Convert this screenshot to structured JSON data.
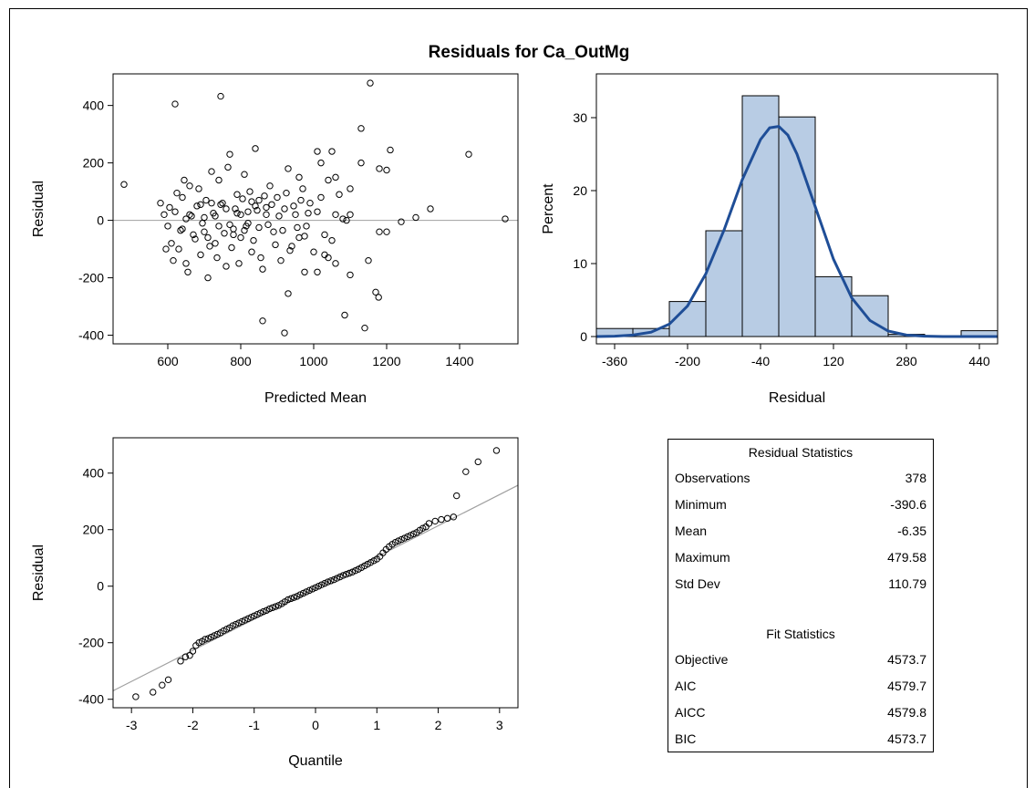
{
  "title": "Residuals for Ca_OutMg",
  "colors": {
    "bar_fill": "#b8cce4",
    "density_line": "#1f4e97",
    "ref_line": "#a0a0a0",
    "axis": "#000000"
  },
  "chart_data": [
    {
      "type": "scatter",
      "xlabel": "Predicted Mean",
      "ylabel": "Residual",
      "xticks": [
        600,
        800,
        1000,
        1200,
        1400
      ],
      "yticks": [
        -400,
        -200,
        0,
        200,
        400
      ],
      "xlim": [
        450,
        1560
      ],
      "ylim": [
        -430,
        510
      ],
      "reference_line": {
        "y": 0
      },
      "points": [
        [
          480,
          125
        ],
        [
          620,
          405
        ],
        [
          745,
          432
        ],
        [
          1155,
          478
        ],
        [
          1130,
          320
        ],
        [
          1425,
          230
        ],
        [
          1525,
          5
        ],
        [
          860,
          -350
        ],
        [
          920,
          -392
        ],
        [
          1085,
          -330
        ],
        [
          1140,
          -375
        ],
        [
          1170,
          -250
        ],
        [
          1178,
          -268
        ],
        [
          930,
          -255
        ],
        [
          975,
          -180
        ],
        [
          1010,
          -180
        ],
        [
          1060,
          -150
        ],
        [
          1100,
          -190
        ],
        [
          1030,
          -120
        ],
        [
          1040,
          -130
        ],
        [
          1150,
          -140
        ],
        [
          1180,
          -40
        ],
        [
          1200,
          -40
        ],
        [
          1180,
          180
        ],
        [
          1210,
          245
        ],
        [
          1200,
          175
        ],
        [
          1280,
          10
        ],
        [
          1320,
          40
        ],
        [
          1240,
          -5
        ],
        [
          960,
          150
        ],
        [
          1010,
          240
        ],
        [
          1020,
          200
        ],
        [
          1060,
          150
        ],
        [
          1050,
          240
        ],
        [
          1100,
          110
        ],
        [
          1130,
          200
        ],
        [
          1080,
          5
        ],
        [
          1090,
          0
        ],
        [
          1100,
          20
        ],
        [
          580,
          60
        ],
        [
          590,
          20
        ],
        [
          600,
          -20
        ],
        [
          610,
          -80
        ],
        [
          620,
          30
        ],
        [
          630,
          -100
        ],
        [
          640,
          80
        ],
        [
          650,
          -150
        ],
        [
          660,
          120
        ],
        [
          670,
          -50
        ],
        [
          680,
          50
        ],
        [
          690,
          -120
        ],
        [
          700,
          10
        ],
        [
          710,
          -200
        ],
        [
          720,
          170
        ],
        [
          730,
          -80
        ],
        [
          740,
          140
        ],
        [
          750,
          60
        ],
        [
          760,
          -160
        ],
        [
          770,
          230
        ],
        [
          780,
          -30
        ],
        [
          790,
          90
        ],
        [
          800,
          -60
        ],
        [
          810,
          160
        ],
        [
          820,
          30
        ],
        [
          830,
          -110
        ],
        [
          840,
          250
        ],
        [
          850,
          70
        ],
        [
          860,
          -170
        ],
        [
          870,
          20
        ],
        [
          880,
          120
        ],
        [
          890,
          -40
        ],
        [
          900,
          80
        ],
        [
          910,
          -140
        ],
        [
          920,
          40
        ],
        [
          930,
          180
        ],
        [
          940,
          -90
        ],
        [
          950,
          20
        ],
        [
          960,
          -60
        ],
        [
          970,
          110
        ],
        [
          980,
          -20
        ],
        [
          990,
          60
        ],
        [
          1000,
          -110
        ],
        [
          1010,
          30
        ],
        [
          1020,
          80
        ],
        [
          1030,
          -50
        ],
        [
          1040,
          140
        ],
        [
          1050,
          -70
        ],
        [
          1060,
          20
        ],
        [
          1070,
          90
        ],
        [
          595,
          -100
        ],
        [
          605,
          45
        ],
        [
          615,
          -140
        ],
        [
          625,
          95
        ],
        [
          635,
          -35
        ],
        [
          645,
          140
        ],
        [
          655,
          -180
        ],
        [
          665,
          15
        ],
        [
          675,
          -65
        ],
        [
          685,
          110
        ],
        [
          695,
          -10
        ],
        [
          705,
          70
        ],
        [
          715,
          -90
        ],
        [
          725,
          25
        ],
        [
          735,
          -130
        ],
        [
          745,
          55
        ],
        [
          755,
          -45
        ],
        [
          765,
          185
        ],
        [
          775,
          -95
        ],
        [
          785,
          40
        ],
        [
          795,
          -150
        ],
        [
          805,
          75
        ],
        [
          815,
          -20
        ],
        [
          825,
          100
        ],
        [
          835,
          -70
        ],
        [
          845,
          35
        ],
        [
          855,
          -130
        ],
        [
          865,
          85
        ],
        [
          875,
          -15
        ],
        [
          885,
          55
        ],
        [
          895,
          -85
        ],
        [
          905,
          15
        ],
        [
          915,
          -35
        ],
        [
          925,
          95
        ],
        [
          935,
          -105
        ],
        [
          945,
          50
        ],
        [
          955,
          -25
        ],
        [
          965,
          70
        ],
        [
          975,
          -55
        ],
        [
          985,
          25
        ],
        [
          640,
          -30
        ],
        [
          660,
          20
        ],
        [
          700,
          -40
        ],
        [
          720,
          60
        ],
        [
          740,
          -20
        ],
        [
          760,
          40
        ],
        [
          780,
          -50
        ],
        [
          800,
          20
        ],
        [
          820,
          -10
        ],
        [
          840,
          50
        ],
        [
          650,
          5
        ],
        [
          690,
          55
        ],
        [
          710,
          -60
        ],
        [
          730,
          15
        ],
        [
          770,
          -15
        ],
        [
          790,
          25
        ],
        [
          810,
          -35
        ],
        [
          830,
          65
        ],
        [
          850,
          -25
        ],
        [
          870,
          45
        ]
      ]
    },
    {
      "type": "bar",
      "xlabel": "Residual",
      "ylabel": "Percent",
      "xticks": [
        -360,
        -200,
        -40,
        120,
        280,
        440
      ],
      "yticks": [
        0,
        10,
        20,
        30
      ],
      "xlim": [
        -400,
        480
      ],
      "ylim": [
        -1,
        36
      ],
      "bin_width": 80,
      "bins": [
        -360,
        -280,
        -200,
        -120,
        -40,
        40,
        120,
        200,
        280,
        360,
        440
      ],
      "values": [
        1.1,
        1.1,
        4.8,
        14.5,
        33.0,
        30.1,
        8.2,
        5.6,
        0.3,
        0.0,
        0.8
      ],
      "density": {
        "x": [
          -400,
          -360,
          -320,
          -280,
          -240,
          -200,
          -160,
          -120,
          -80,
          -40,
          -20,
          0,
          20,
          40,
          80,
          120,
          160,
          200,
          240,
          280,
          320,
          360,
          400,
          440,
          480
        ],
        "y": [
          0.0,
          0.05,
          0.2,
          0.6,
          1.7,
          4.2,
          8.6,
          14.6,
          21.5,
          27.0,
          28.6,
          28.8,
          27.6,
          25.0,
          17.8,
          10.6,
          5.3,
          2.2,
          0.75,
          0.2,
          0.05,
          0.0,
          0.0,
          0.0,
          0.0
        ]
      }
    },
    {
      "type": "scatter",
      "xlabel": "Quantile",
      "ylabel": "Residual",
      "xticks": [
        -3,
        -2,
        -1,
        0,
        1,
        2,
        3
      ],
      "yticks": [
        -400,
        -200,
        0,
        200,
        400
      ],
      "xlim": [
        -3.3,
        3.3
      ],
      "ylim": [
        -430,
        525
      ],
      "reference_line": {
        "x": [
          -3.3,
          3.3
        ],
        "y": [
          -370,
          357
        ]
      },
      "points": [
        [
          -2.93,
          -391
        ],
        [
          -2.65,
          -375
        ],
        [
          -2.5,
          -350
        ],
        [
          -2.4,
          -331
        ],
        [
          -2.2,
          -265
        ],
        [
          -2.12,
          -250
        ],
        [
          -2.05,
          -245
        ],
        [
          -2.0,
          -230
        ],
        [
          -1.95,
          -210
        ],
        [
          -1.9,
          -200
        ],
        [
          -1.85,
          -195
        ],
        [
          -1.8,
          -188
        ],
        [
          -1.75,
          -185
        ],
        [
          -1.7,
          -180
        ],
        [
          -1.65,
          -175
        ],
        [
          -1.6,
          -170
        ],
        [
          -1.55,
          -165
        ],
        [
          -1.5,
          -158
        ],
        [
          -1.45,
          -152
        ],
        [
          -1.4,
          -147
        ],
        [
          -1.35,
          -140
        ],
        [
          -1.3,
          -135
        ],
        [
          -1.25,
          -130
        ],
        [
          -1.2,
          -125
        ],
        [
          -1.15,
          -120
        ],
        [
          -1.1,
          -115
        ],
        [
          -1.05,
          -110
        ],
        [
          -1.0,
          -105
        ],
        [
          -0.95,
          -100
        ],
        [
          -0.9,
          -95
        ],
        [
          -0.85,
          -90
        ],
        [
          -0.8,
          -86
        ],
        [
          -0.75,
          -80
        ],
        [
          -0.7,
          -76
        ],
        [
          -0.65,
          -72
        ],
        [
          -0.6,
          -68
        ],
        [
          -0.55,
          -62
        ],
        [
          -0.5,
          -55
        ],
        [
          -0.45,
          -48
        ],
        [
          -0.4,
          -44
        ],
        [
          -0.35,
          -40
        ],
        [
          -0.3,
          -36
        ],
        [
          -0.25,
          -30
        ],
        [
          -0.2,
          -25
        ],
        [
          -0.15,
          -20
        ],
        [
          -0.1,
          -15
        ],
        [
          -0.05,
          -10
        ],
        [
          0.0,
          -5
        ],
        [
          0.05,
          0
        ],
        [
          0.1,
          5
        ],
        [
          0.15,
          10
        ],
        [
          0.2,
          15
        ],
        [
          0.25,
          19
        ],
        [
          0.3,
          23
        ],
        [
          0.35,
          28
        ],
        [
          0.4,
          33
        ],
        [
          0.45,
          38
        ],
        [
          0.5,
          42
        ],
        [
          0.55,
          46
        ],
        [
          0.6,
          50
        ],
        [
          0.65,
          55
        ],
        [
          0.7,
          60
        ],
        [
          0.75,
          66
        ],
        [
          0.8,
          72
        ],
        [
          0.85,
          78
        ],
        [
          0.9,
          84
        ],
        [
          0.95,
          90
        ],
        [
          1.0,
          96
        ],
        [
          1.05,
          105
        ],
        [
          1.1,
          118
        ],
        [
          1.15,
          130
        ],
        [
          1.2,
          140
        ],
        [
          1.25,
          148
        ],
        [
          1.3,
          155
        ],
        [
          1.35,
          160
        ],
        [
          1.4,
          165
        ],
        [
          1.45,
          170
        ],
        [
          1.5,
          175
        ],
        [
          1.55,
          180
        ],
        [
          1.6,
          185
        ],
        [
          1.65,
          190
        ],
        [
          1.7,
          198
        ],
        [
          1.75,
          205
        ],
        [
          1.8,
          210
        ],
        [
          1.85,
          222
        ],
        [
          1.95,
          230
        ],
        [
          2.05,
          236
        ],
        [
          2.15,
          240
        ],
        [
          2.25,
          245
        ],
        [
          2.3,
          320
        ],
        [
          2.45,
          405
        ],
        [
          2.65,
          440
        ],
        [
          2.95,
          480
        ]
      ]
    }
  ],
  "stats": {
    "residual_header": "Residual Statistics",
    "residual_rows": [
      {
        "label": "Observations",
        "value": "378"
      },
      {
        "label": "Minimum",
        "value": "-390.6"
      },
      {
        "label": "Mean",
        "value": "-6.35"
      },
      {
        "label": "Maximum",
        "value": "479.58"
      },
      {
        "label": "Std Dev",
        "value": "110.79"
      }
    ],
    "fit_header": "Fit Statistics",
    "fit_rows": [
      {
        "label": "Objective",
        "value": "4573.7"
      },
      {
        "label": "AIC",
        "value": "4579.7"
      },
      {
        "label": "AICC",
        "value": "4579.8"
      },
      {
        "label": "BIC",
        "value": "4573.7"
      }
    ]
  }
}
